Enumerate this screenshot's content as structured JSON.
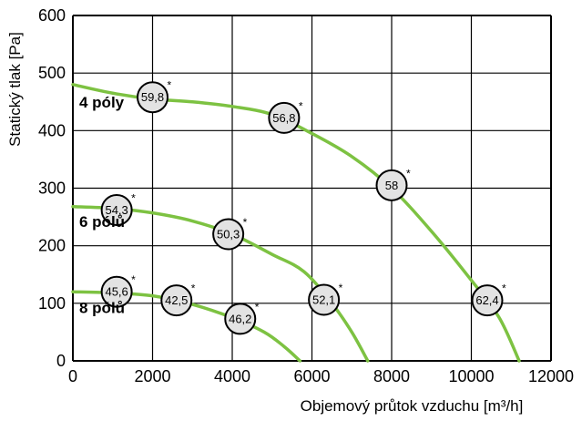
{
  "chart_data": {
    "type": "line",
    "xlabel": "Objemový průtok vzduchu [m³/h]",
    "ylabel": "Statický tlak [Pa]",
    "xlim": [
      0,
      12000
    ],
    "ylim": [
      0,
      600
    ],
    "xticks": [
      0,
      2000,
      4000,
      6000,
      8000,
      10000,
      12000
    ],
    "yticks": [
      0,
      100,
      200,
      300,
      400,
      500,
      600
    ],
    "grid": true,
    "line_color": "#7dc242",
    "series": [
      {
        "name": "4 póly",
        "points": [
          [
            0,
            480
          ],
          [
            1000,
            465
          ],
          [
            2000,
            455
          ],
          [
            3000,
            450
          ],
          [
            4000,
            442
          ],
          [
            5000,
            428
          ],
          [
            6000,
            395
          ],
          [
            7000,
            355
          ],
          [
            8000,
            300
          ],
          [
            9000,
            225
          ],
          [
            10000,
            140
          ],
          [
            10700,
            75
          ],
          [
            11200,
            0
          ]
        ],
        "markers": [
          {
            "x": 2000,
            "y": 458,
            "label": "59,8"
          },
          {
            "x": 5300,
            "y": 422,
            "label": "56,8"
          },
          {
            "x": 8000,
            "y": 305,
            "label": "58"
          },
          {
            "x": 10400,
            "y": 105,
            "label": "62,4"
          }
        ]
      },
      {
        "name": "6 pólů",
        "points": [
          [
            0,
            268
          ],
          [
            1000,
            265
          ],
          [
            2000,
            257
          ],
          [
            3000,
            243
          ],
          [
            4000,
            220
          ],
          [
            5000,
            185
          ],
          [
            5800,
            155
          ],
          [
            6500,
            100
          ],
          [
            7000,
            50
          ],
          [
            7400,
            0
          ]
        ],
        "markers": [
          {
            "x": 1100,
            "y": 262,
            "label": "54,3"
          },
          {
            "x": 3900,
            "y": 220,
            "label": "50,3"
          },
          {
            "x": 6300,
            "y": 106,
            "label": "52,1"
          }
        ]
      },
      {
        "name": "8 pólů",
        "points": [
          [
            0,
            120
          ],
          [
            1000,
            118
          ],
          [
            2000,
            113
          ],
          [
            3000,
            98
          ],
          [
            4000,
            75
          ],
          [
            4800,
            50
          ],
          [
            5300,
            25
          ],
          [
            5700,
            0
          ]
        ],
        "markers": [
          {
            "x": 1100,
            "y": 120,
            "label": "45,6"
          },
          {
            "x": 2600,
            "y": 105,
            "label": "42,5"
          },
          {
            "x": 4200,
            "y": 73,
            "label": "46,2"
          }
        ]
      }
    ],
    "marker_suffix": "*"
  }
}
